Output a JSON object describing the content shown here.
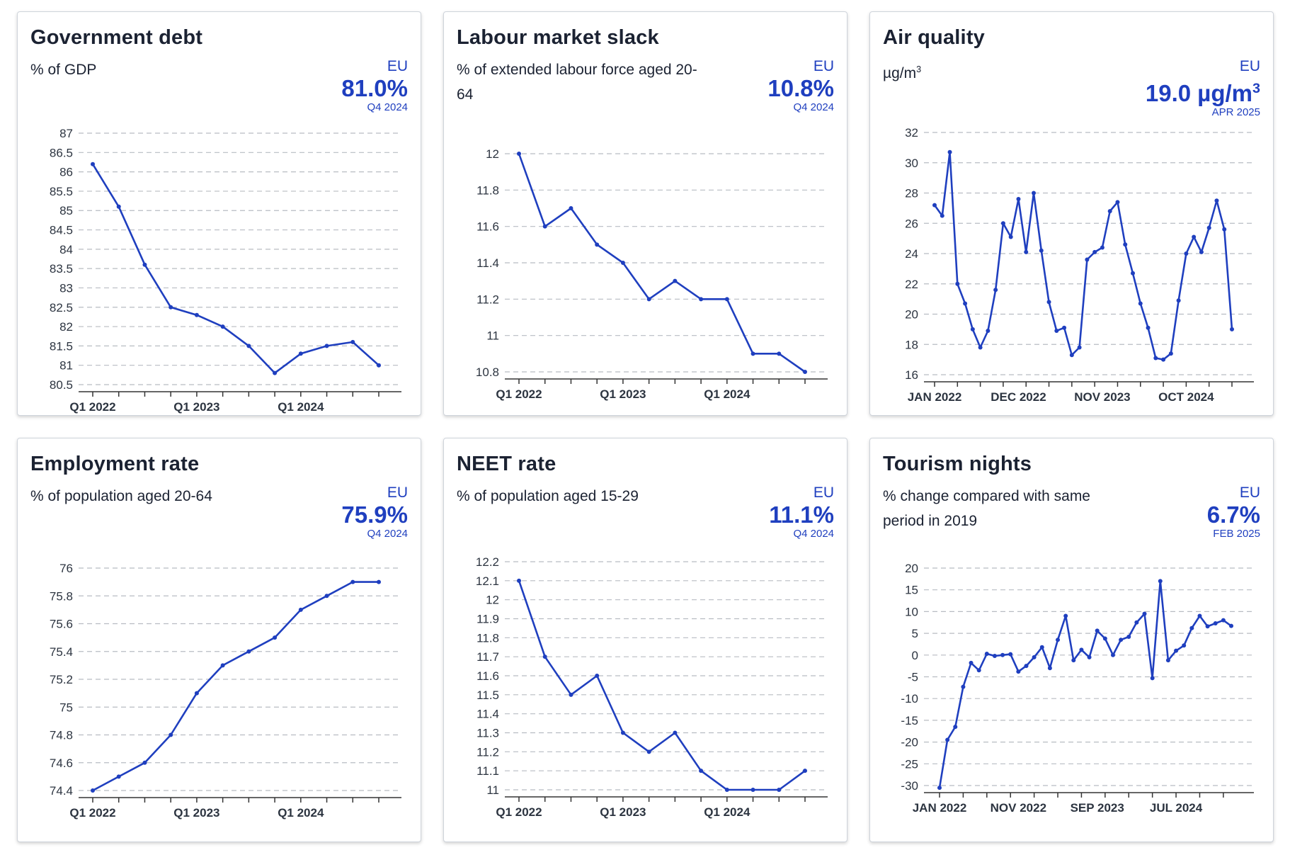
{
  "colors": {
    "accent": "#1f3fbf",
    "line": "#1f3fbf",
    "grid": "#b8bcc2"
  },
  "cards": [
    {
      "title": "Government debt",
      "subtitle": "% of GDP",
      "kpi": {
        "region": "EU",
        "value": "81.0%",
        "period": "Q4 2024"
      }
    },
    {
      "title": "Labour market slack",
      "subtitle": "% of extended labour force aged 20-64",
      "kpi": {
        "region": "EU",
        "value": "10.8%",
        "period": "Q4 2024"
      }
    },
    {
      "title": "Air quality",
      "subtitle": "µg/m",
      "subtitle_sup": "3",
      "kpi": {
        "region": "EU",
        "value": "19.0 µg/m",
        "value_sup": "3",
        "period": "APR 2025"
      }
    },
    {
      "title": "Employment rate",
      "subtitle": "% of population aged 20-64",
      "kpi": {
        "region": "EU",
        "value": "75.9%",
        "period": "Q4 2024"
      }
    },
    {
      "title": "NEET rate",
      "subtitle": "% of population aged 15-29",
      "kpi": {
        "region": "EU",
        "value": "11.1%",
        "period": "Q4 2024"
      }
    },
    {
      "title": "Tourism nights",
      "subtitle": "% change compared with same period in 2019",
      "kpi": {
        "region": "EU",
        "value": "6.7%",
        "period": "FEB 2025"
      }
    }
  ],
  "chart_data": [
    {
      "type": "line",
      "title": "Government debt",
      "x": [
        "Q1 2022",
        "Q2 2022",
        "Q3 2022",
        "Q4 2022",
        "Q1 2023",
        "Q2 2023",
        "Q3 2023",
        "Q4 2023",
        "Q1 2024",
        "Q2 2024",
        "Q3 2024",
        "Q4 2024"
      ],
      "x_tick_labels": [
        "Q1 2022",
        "Q1 2023",
        "Q1 2024"
      ],
      "y_ticks": [
        "80.5",
        "81",
        "81.5",
        "82",
        "82.5",
        "83",
        "83.5",
        "84",
        "84.5",
        "85",
        "85.5",
        "86",
        "86.5",
        "87"
      ],
      "ylim": [
        80.5,
        87
      ],
      "values": [
        86.2,
        85.1,
        83.6,
        82.5,
        82.3,
        82.0,
        81.5,
        80.8,
        81.3,
        81.5,
        81.6,
        81.0
      ],
      "grid": true
    },
    {
      "type": "line",
      "title": "Labour market slack",
      "x": [
        "Q1 2022",
        "Q2 2022",
        "Q3 2022",
        "Q4 2022",
        "Q1 2023",
        "Q2 2023",
        "Q3 2023",
        "Q4 2023",
        "Q1 2024",
        "Q2 2024",
        "Q3 2024",
        "Q4 2024"
      ],
      "x_tick_labels": [
        "Q1 2022",
        "Q1 2023",
        "Q1 2024"
      ],
      "y_ticks": [
        "10.8",
        "11",
        "11.2",
        "11.4",
        "11.6",
        "11.8",
        "12"
      ],
      "ylim": [
        10.8,
        12
      ],
      "values": [
        12.0,
        11.6,
        11.7,
        11.5,
        11.4,
        11.2,
        11.3,
        11.2,
        11.2,
        10.9,
        10.9,
        10.8
      ],
      "grid": true
    },
    {
      "type": "line",
      "title": "Air quality",
      "x_tick_labels": [
        "JAN 2022",
        "DEC 2022",
        "NOV 2023",
        "OCT 2024"
      ],
      "x_tick_index": [
        0,
        11,
        22,
        33
      ],
      "y_ticks": [
        "16",
        "18",
        "20",
        "22",
        "24",
        "26",
        "28",
        "30",
        "32"
      ],
      "ylim": [
        16,
        32
      ],
      "values": [
        27.2,
        26.5,
        30.7,
        22.0,
        20.7,
        19.0,
        17.8,
        18.9,
        21.6,
        26.0,
        25.1,
        27.6,
        24.1,
        28.0,
        24.2,
        20.8,
        18.9,
        19.1,
        17.3,
        17.8,
        23.6,
        24.1,
        24.4,
        26.8,
        27.4,
        24.6,
        22.7,
        20.7,
        19.1,
        17.1,
        17.0,
        17.4,
        20.9,
        24.0,
        25.1,
        24.1,
        25.7,
        27.5,
        25.6,
        19.0
      ],
      "grid": true
    },
    {
      "type": "line",
      "title": "Employment rate",
      "x": [
        "Q1 2022",
        "Q2 2022",
        "Q3 2022",
        "Q4 2022",
        "Q1 2023",
        "Q2 2023",
        "Q3 2023",
        "Q4 2023",
        "Q1 2024",
        "Q2 2024",
        "Q3 2024",
        "Q4 2024"
      ],
      "x_tick_labels": [
        "Q1 2022",
        "Q1 2023",
        "Q1 2024"
      ],
      "y_ticks": [
        "74.4",
        "74.6",
        "74.8",
        "75",
        "75.2",
        "75.4",
        "75.6",
        "75.8",
        "76"
      ],
      "ylim": [
        74.4,
        76
      ],
      "values": [
        74.4,
        74.5,
        74.6,
        74.8,
        75.1,
        75.3,
        75.4,
        75.5,
        75.7,
        75.8,
        75.9,
        75.9
      ],
      "grid": true
    },
    {
      "type": "line",
      "title": "NEET rate",
      "x": [
        "Q1 2022",
        "Q2 2022",
        "Q3 2022",
        "Q4 2022",
        "Q1 2023",
        "Q2 2023",
        "Q3 2023",
        "Q4 2023",
        "Q1 2024",
        "Q2 2024",
        "Q3 2024",
        "Q4 2024"
      ],
      "x_tick_labels": [
        "Q1 2022",
        "Q1 2023",
        "Q1 2024"
      ],
      "y_ticks": [
        "11",
        "11.1",
        "11.2",
        "11.3",
        "11.4",
        "11.5",
        "11.6",
        "11.7",
        "11.8",
        "11.9",
        "12",
        "12.1",
        "12.2"
      ],
      "ylim": [
        11,
        12.2
      ],
      "values": [
        12.1,
        11.7,
        11.5,
        11.6,
        11.3,
        11.2,
        11.3,
        11.1,
        11.0,
        11.0,
        11.0,
        11.1
      ],
      "grid": true
    },
    {
      "type": "line",
      "title": "Tourism nights",
      "x_tick_labels": [
        "JAN 2022",
        "NOV 2022",
        "SEP 2023",
        "JUL 2024"
      ],
      "x_tick_index": [
        0,
        10,
        20,
        30
      ],
      "y_ticks": [
        "-30",
        "-25",
        "-20",
        "-15",
        "-10",
        "-5",
        "0",
        "5",
        "10",
        "15",
        "20"
      ],
      "ylim": [
        -30,
        20
      ],
      "values": [
        -30.5,
        -19.5,
        -16.5,
        -7.3,
        -1.8,
        -3.5,
        0.3,
        -0.2,
        0.0,
        0.2,
        -3.8,
        -2.5,
        -0.5,
        1.8,
        -3.0,
        3.5,
        9.0,
        -1.2,
        1.2,
        -0.5,
        5.6,
        3.8,
        0.0,
        3.5,
        4.2,
        7.5,
        9.5,
        -5.3,
        17.0,
        -1.2,
        1.0,
        2.2,
        6.2,
        9.0,
        6.6,
        7.3,
        8.0,
        6.7
      ],
      "grid": true
    }
  ]
}
